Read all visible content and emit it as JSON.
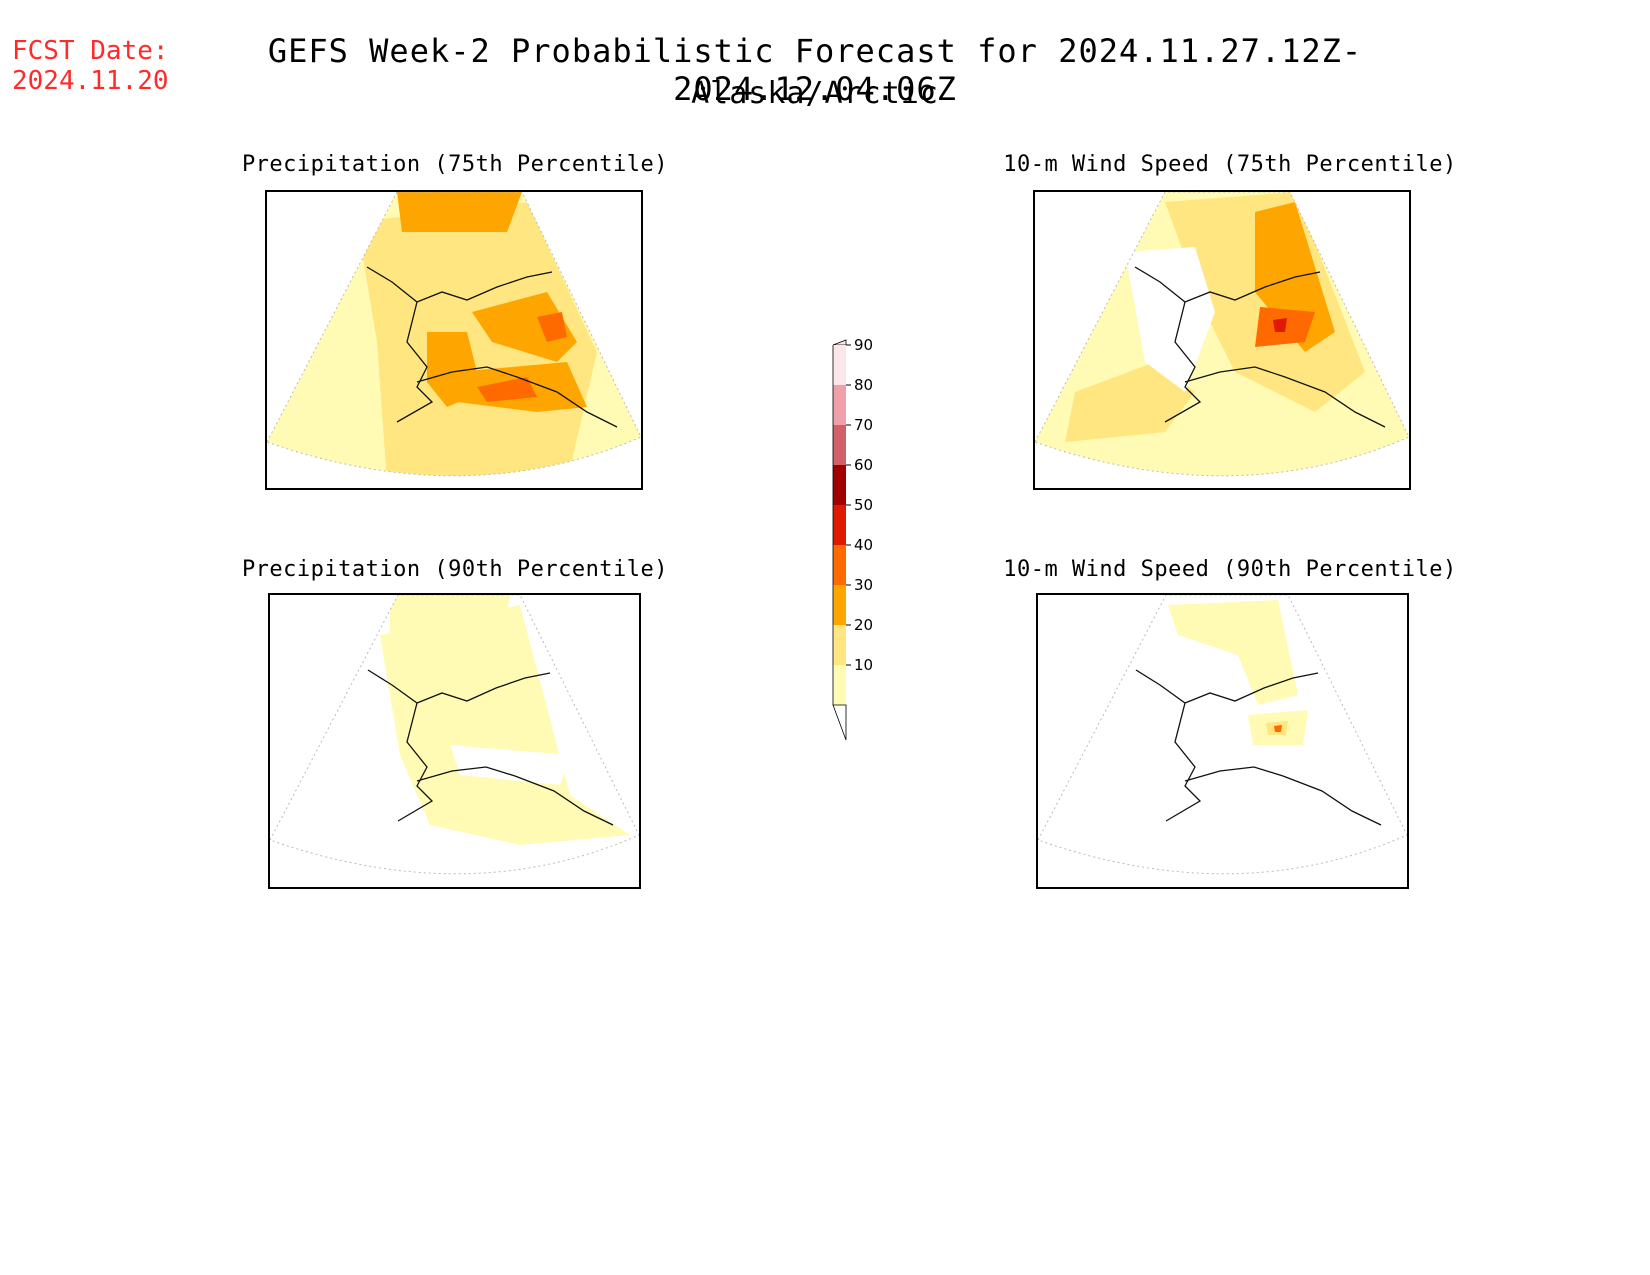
{
  "header": {
    "fcst_label": "FCST Date:",
    "fcst_date": "2024.11.20",
    "title": "GEFS Week-2 Probabilistic Forecast for 2024.11.27.12Z-2024.12.04.06Z",
    "subtitle": "Alaska/Arctic"
  },
  "panels": [
    {
      "title": "Precipitation (75th Percentile)"
    },
    {
      "title": "10-m Wind Speed (75th Percentile)"
    },
    {
      "title": "Precipitation (90th Percentile)"
    },
    {
      "title": "10-m Wind Speed (90th Percentile)"
    }
  ],
  "legend": {
    "levels": [
      "10",
      "20",
      "30",
      "40",
      "50",
      "60",
      "70",
      "80",
      "90"
    ],
    "colors": [
      "#fffbb4",
      "#ffe680",
      "#ffa500",
      "#ff6a00",
      "#e01a00",
      "#a00000",
      "#d36068",
      "#f0a0a8",
      "#fde6ea"
    ]
  }
}
